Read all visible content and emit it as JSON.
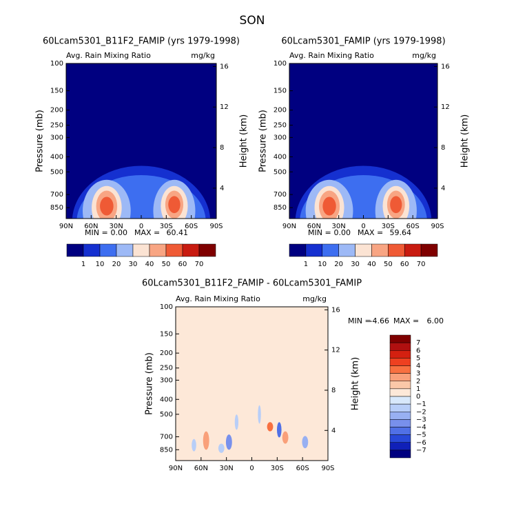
{
  "title": "SON",
  "chart_data": [
    {
      "type": "contour",
      "title": "60Lcam5301_B11F2_FAMIP (yrs 1979-1998)",
      "subtitle": "Avg. Rain Mixing Ratio",
      "units": "mg/kg",
      "ylabel": "Pressure (mb)",
      "y2label": "Height (km)",
      "xlim": [
        90,
        -90
      ],
      "xticks": [
        {
          "value": 90,
          "label": "90N"
        },
        {
          "value": 60,
          "label": "60N"
        },
        {
          "value": 30,
          "label": "30N"
        },
        0,
        {
          "value": -30,
          "label": "30S"
        },
        {
          "value": -60,
          "label": "60S"
        },
        {
          "value": -90,
          "label": "90S"
        }
      ],
      "ylim": [
        100,
        1000
      ],
      "log_y": true,
      "yticks": [
        100,
        150,
        200,
        250,
        300,
        400,
        500,
        700,
        850
      ],
      "y2lim": [
        1,
        16.3
      ],
      "y2ticks": [
        4,
        8,
        12,
        16
      ],
      "min_label": "MIN =",
      "min": {
        "value": 0,
        "label": "0.00"
      },
      "max_label": "MAX =",
      "max": 60.41,
      "colorbar": {
        "orientation": "horizontal",
        "levels": [
          1,
          10,
          20,
          30,
          40,
          50,
          60,
          70
        ],
        "colors": [
          "#000080",
          "#1530d0",
          "#3d6ef0",
          "#9db9f6",
          "#fbe3d3",
          "#f8a583",
          "#ef5a35",
          "#c81b10",
          "#7f0000"
        ]
      }
    },
    {
      "type": "contour",
      "title": "60Lcam5301_FAMIP (yrs 1979-1998)",
      "subtitle": "Avg. Rain Mixing Ratio",
      "units": "mg/kg",
      "ylabel": "Pressure (mb)",
      "y2label": "Height (km)",
      "xlim": [
        90,
        -90
      ],
      "xticks": [
        {
          "value": 90,
          "label": "90N"
        },
        {
          "value": 60,
          "label": "60N"
        },
        {
          "value": 30,
          "label": "30N"
        },
        0,
        {
          "value": -30,
          "label": "30S"
        },
        {
          "value": -60,
          "label": "60S"
        },
        {
          "value": -90,
          "label": "90S"
        }
      ],
      "ylim": [
        100,
        1000
      ],
      "log_y": true,
      "yticks": [
        100,
        150,
        200,
        250,
        300,
        400,
        500,
        700,
        850
      ],
      "y2lim": [
        1,
        16.3
      ],
      "y2ticks": [
        4,
        8,
        12,
        16
      ],
      "min_label": "MIN =",
      "min": {
        "value": 0,
        "label": "0.00"
      },
      "max_label": "MAX =",
      "max": 59.64,
      "colorbar": {
        "orientation": "horizontal",
        "levels": [
          1,
          10,
          20,
          30,
          40,
          50,
          60,
          70
        ],
        "colors": [
          "#000080",
          "#1530d0",
          "#3d6ef0",
          "#9db9f6",
          "#fbe3d3",
          "#f8a583",
          "#ef5a35",
          "#c81b10",
          "#7f0000"
        ]
      }
    },
    {
      "type": "contour",
      "title": "60Lcam5301_B11F2_FAMIP - 60Lcam5301_FAMIP",
      "subtitle": "Avg. Rain Mixing Ratio",
      "units": "mg/kg",
      "ylabel": "Pressure (mb)",
      "y2label": "Height (km)",
      "xlim": [
        90,
        -90
      ],
      "xticks": [
        {
          "value": 90,
          "label": "90N"
        },
        {
          "value": 60,
          "label": "60N"
        },
        {
          "value": 30,
          "label": "30N"
        },
        0,
        {
          "value": -30,
          "label": "30S"
        },
        {
          "value": -60,
          "label": "60S"
        },
        {
          "value": -90,
          "label": "90S"
        }
      ],
      "ylim": [
        100,
        1000
      ],
      "log_y": true,
      "yticks": [
        100,
        150,
        200,
        250,
        300,
        400,
        500,
        700,
        850
      ],
      "y2lim": [
        1,
        16.3
      ],
      "y2ticks": [
        4,
        8,
        12,
        16
      ],
      "min_label": "MIN =",
      "min": -4.66,
      "max_label": "MAX =",
      "max": {
        "value": 6,
        "label": "6.00"
      },
      "colorbar": {
        "orientation": "vertical",
        "levels": [
          7,
          6,
          5,
          4,
          3,
          2,
          1,
          0,
          {
            "value": -1,
            "label": "−1"
          },
          {
            "value": -2,
            "label": "−2"
          },
          {
            "value": -3,
            "label": "−3"
          },
          {
            "value": -4,
            "label": "−4"
          },
          {
            "value": -5,
            "label": "−5"
          },
          {
            "value": -6,
            "label": "−6"
          },
          {
            "value": -7,
            "label": "−7"
          }
        ],
        "colors": [
          "#7f0000",
          "#b01010",
          "#d42010",
          "#ee4020",
          "#f87040",
          "#f9a07a",
          "#fbc8a8",
          "#fde8d8",
          "#d8e8fb",
          "#b8cef8",
          "#98b0f2",
          "#7890ec",
          "#5070e6",
          "#2848d8",
          "#1020b8",
          "#000080"
        ]
      }
    }
  ]
}
